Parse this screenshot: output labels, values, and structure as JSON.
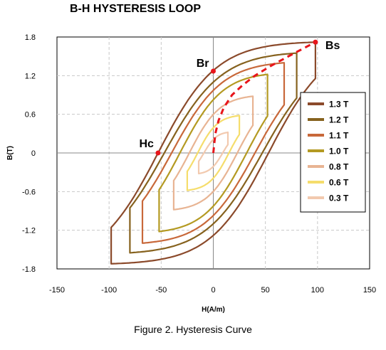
{
  "chart_data": {
    "type": "line",
    "title": "B-H HYSTERESIS LOOP",
    "caption": "Figure 2. Hysteresis Curve",
    "xlabel": "H(A/m)",
    "ylabel": "B(T)",
    "xlim": [
      -150,
      150
    ],
    "ylim": [
      -1.8,
      1.8
    ],
    "xticks": [
      -150,
      -100,
      -50,
      0,
      50,
      100,
      150
    ],
    "yticks": [
      1.8,
      1.2,
      0.6,
      0,
      -0.6,
      -1.2,
      -1.8
    ],
    "ytick_labels": [
      "1.8",
      "1.2",
      "0.6",
      "0",
      "-0.6",
      "-1.2",
      "-1.8"
    ],
    "grid": true,
    "legend_position": "right",
    "series": [
      {
        "name": "1.3 T",
        "color": "#8B4A2B",
        "Bmax": 1.72,
        "Hmax": 98,
        "Hc": 53,
        "Br": 1.27
      },
      {
        "name": "1.2 T",
        "color": "#86621E",
        "Bmax": 1.55,
        "Hmax": 80,
        "Hc": 47,
        "Br": 1.08
      },
      {
        "name": "1.1 T",
        "color": "#C8683A",
        "Bmax": 1.4,
        "Hmax": 68,
        "Hc": 40,
        "Br": 0.95
      },
      {
        "name": "1.0 T",
        "color": "#B49A22",
        "Bmax": 1.22,
        "Hmax": 52,
        "Hc": 32,
        "Br": 0.8
      },
      {
        "name": "0.8 T",
        "color": "#E8B493",
        "Bmax": 0.88,
        "Hmax": 38,
        "Hc": 23,
        "Br": 0.58
      },
      {
        "name": "0.6 T",
        "color": "#F5DD6C",
        "Bmax": 0.58,
        "Hmax": 25,
        "Hc": 15,
        "Br": 0.38
      },
      {
        "name": "0.3 T",
        "color": "#F2C9AE",
        "Bmax": 0.32,
        "Hmax": 14,
        "Hc": 9,
        "Br": 0.2
      }
    ],
    "magnetization_curve": {
      "color": "#E8151B",
      "x": [
        0,
        2,
        5,
        10,
        18,
        28,
        40,
        55,
        72,
        98
      ],
      "y": [
        0,
        0.3,
        0.5,
        0.7,
        0.9,
        1.05,
        1.2,
        1.35,
        1.5,
        1.72
      ]
    },
    "annotations": [
      {
        "label": "Bs",
        "x": 98,
        "y": 1.72
      },
      {
        "label": "Br",
        "x": 0,
        "y": 1.27
      },
      {
        "label": "Hc",
        "x": -53,
        "y": 0
      }
    ]
  }
}
